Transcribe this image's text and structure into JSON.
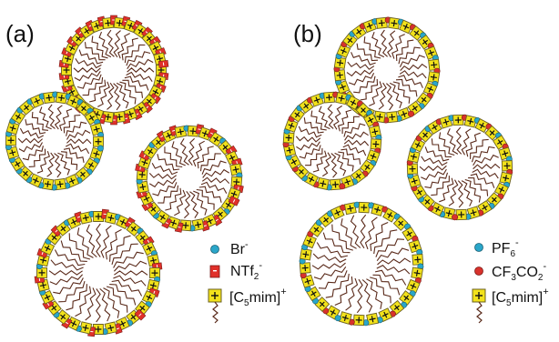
{
  "colors": {
    "cation_fill": "#f2e21b",
    "cation_stroke": "#6b6020",
    "br_anion": "#2aa6c9",
    "ntf2_anion": "#e0302a",
    "pf6_anion": "#2aa6c9",
    "cf3co2_anion": "#d8322c",
    "tail": "#5a2a1a"
  },
  "panels": [
    {
      "label": "(a)",
      "legend": [
        {
          "symbol": "blue-circle",
          "text": "Br",
          "sub": "",
          "sup": "-"
        },
        {
          "symbol": "red-rect",
          "text": "NTf",
          "sub": "2",
          "sup": "-"
        },
        {
          "symbol": "cation-square",
          "text": "[C",
          "sub": "5",
          "rest": "mim]",
          "sup": "+"
        }
      ]
    },
    {
      "label": "(b)",
      "legend": [
        {
          "symbol": "blue-circle",
          "text": "PF",
          "sub": "6",
          "sup": "-"
        },
        {
          "symbol": "red-circle",
          "text": "CF",
          "sub": "3",
          "rest": "CO",
          "sub2": "2",
          "sup": "-"
        },
        {
          "symbol": "cation-square",
          "text": "[C",
          "sub": "5",
          "rest": "mim]",
          "sup": "+"
        }
      ]
    }
  ]
}
